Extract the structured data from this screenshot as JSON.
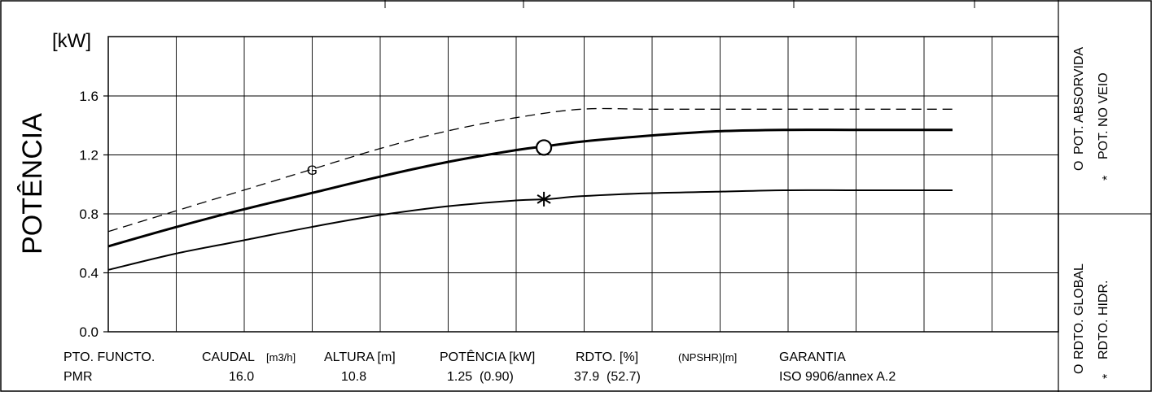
{
  "chart_data": {
    "type": "line",
    "ylabel": "POTÊNCIA",
    "yunit": "[kW]",
    "ylim": [
      0.0,
      1.6
    ],
    "yticks": [
      "0.0",
      "0.4",
      "0.8",
      "1.2",
      "1.6"
    ],
    "grid": true,
    "series": [
      {
        "key": "dashed",
        "style": "dashed",
        "label": "G",
        "x": [
          0,
          0.08,
          0.16,
          0.24,
          0.32,
          0.4,
          0.48,
          0.56,
          0.64,
          0.72,
          0.8,
          0.88,
          0.96,
          1.0
        ],
        "values": [
          0.68,
          0.82,
          0.96,
          1.1,
          1.24,
          1.36,
          1.45,
          1.51,
          1.51,
          1.51,
          1.51,
          1.51,
          1.51,
          1.51
        ]
      },
      {
        "key": "absorbed",
        "style": "bold",
        "x": [
          0,
          0.08,
          0.16,
          0.24,
          0.32,
          0.4,
          0.48,
          0.52,
          0.56,
          0.64,
          0.72,
          0.8,
          0.88,
          0.96,
          1.0
        ],
        "values": [
          0.58,
          0.71,
          0.83,
          0.94,
          1.05,
          1.15,
          1.23,
          1.26,
          1.29,
          1.33,
          1.36,
          1.37,
          1.37,
          1.37,
          1.37
        ]
      },
      {
        "key": "shaft",
        "style": "thin",
        "x": [
          0,
          0.08,
          0.16,
          0.24,
          0.32,
          0.4,
          0.48,
          0.52,
          0.56,
          0.64,
          0.72,
          0.8,
          0.88,
          0.96,
          1.0
        ],
        "values": [
          0.42,
          0.53,
          0.62,
          0.71,
          0.79,
          0.85,
          0.89,
          0.9,
          0.92,
          0.94,
          0.95,
          0.96,
          0.96,
          0.96,
          0.96
        ]
      }
    ],
    "markers": [
      {
        "symbol": "circle",
        "x": 0.516,
        "y": 1.25
      },
      {
        "symbol": "asterisk",
        "x": 0.516,
        "y": 0.9
      }
    ]
  },
  "legend": {
    "right_top": [
      {
        "symbol": "O",
        "label": "POT. ABSORVIDA"
      },
      {
        "symbol": "*",
        "label": "POT. NO VEIO"
      }
    ],
    "right_bottom": [
      {
        "symbol": "O",
        "label": "RDTO. GLOBAL"
      },
      {
        "symbol": "*",
        "label": "RDTO. HIDR."
      }
    ]
  },
  "footer": {
    "pto_label": "PTO. FUNCTO.",
    "pto_value": "PMR",
    "caudal_label": "CAUDAL",
    "caudal_unit": "[m3/h]",
    "caudal_value": "16.0",
    "altura_label": "ALTURA [m]",
    "altura_value": "10.8",
    "potencia_label": "POTÊNCIA [kW]",
    "potencia_value": "1.25  (0.90)",
    "rdto_label": "RDTO. [%]",
    "rdto_value": "37.9  (52.7)",
    "npshr_label": "(NPSHR)[m]",
    "garantia_label": "GARANTIA",
    "garantia_value": "ISO 9906/annex A.2"
  }
}
